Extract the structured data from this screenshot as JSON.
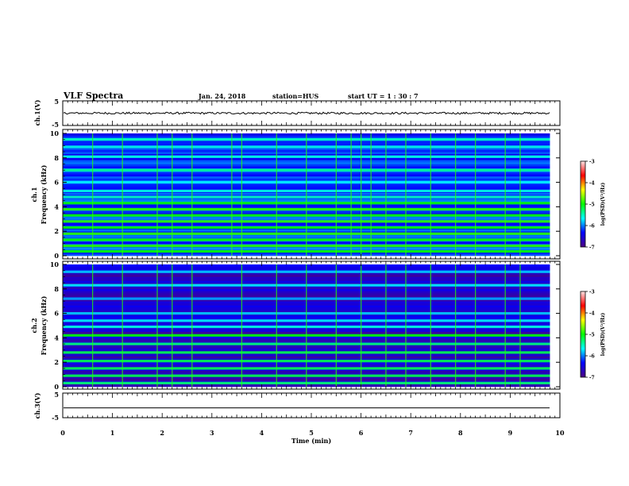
{
  "header": {
    "title": "VLF Spectra",
    "date": "Jan. 24, 2018",
    "station": "station=HUS",
    "start": "start  UT =   1 : 30 : 7"
  },
  "colors": {
    "background": "#ffffff",
    "axis": "#000000",
    "spectrogram_floor": "#00005a",
    "colormap": [
      "#4d0080",
      "#0000ff",
      "#00ffff",
      "#00ff00",
      "#ffff00",
      "#ff0000",
      "#ffe6e6"
    ]
  },
  "chart_data": [
    {
      "type": "line",
      "name": "ch1-waveform",
      "ylabel": "ch.1(V)",
      "ylim": [
        -5,
        5
      ],
      "ytick_labels": [
        "5",
        "-5"
      ],
      "xlim": [
        0,
        10
      ],
      "approx_level": 0,
      "noise_amplitude": 0.4,
      "end_time": 9.8
    },
    {
      "type": "heatmap",
      "name": "ch1-spectrogram",
      "ylabel": "ch.1\nFrequency (kHz)",
      "ylim": [
        0,
        10
      ],
      "ytick_labels": [
        "0",
        "2",
        "4",
        "6",
        "8",
        "10"
      ],
      "xlim": [
        0,
        10
      ],
      "end_time": 9.8,
      "colorbar": {
        "label": "log(PSD)(V²/Hz)",
        "range": [
          -7,
          -3
        ],
        "tick_labels": [
          "-3",
          "-4",
          "-5",
          "-6",
          "-7"
        ]
      },
      "bands_khz": [
        0.35,
        0.8,
        1.3,
        1.8,
        2.3,
        2.8,
        3.3,
        3.8,
        4.3,
        4.8,
        5.3,
        6.0,
        7.0,
        8.1,
        8.9,
        9.5
      ],
      "band_log_psd": [
        -5.0,
        -4.9,
        -5.0,
        -4.9,
        -5.0,
        -4.9,
        -5.0,
        -4.9,
        -5.0,
        -5.5,
        -5.6,
        -5.7,
        -5.4,
        -5.6,
        -5.6,
        -5.5
      ],
      "background_log_psd": -6.2,
      "impulse_times_min": [
        0.6,
        1.2,
        1.9,
        2.2,
        2.6,
        3.4,
        3.6,
        4.3,
        4.9,
        5.5,
        5.8,
        6.0,
        6.2,
        6.5,
        6.9,
        7.4,
        7.9,
        8.3,
        8.9,
        9.2
      ]
    },
    {
      "type": "heatmap",
      "name": "ch2-spectrogram",
      "ylabel": "ch.2\nFrequency (kHz)",
      "ylim": [
        0,
        10
      ],
      "ytick_labels": [
        "0",
        "2",
        "4",
        "6",
        "8",
        "10"
      ],
      "xlim": [
        0,
        10
      ],
      "end_time": 9.8,
      "colorbar": {
        "label": "log(PSD)(V²/Hz)",
        "range": [
          -7,
          -3
        ],
        "tick_labels": [
          "-3",
          "-4",
          "-5",
          "-6",
          "-7"
        ]
      },
      "bands_khz": [
        0.3,
        0.9,
        1.5,
        2.1,
        2.8,
        3.5,
        4.2,
        4.9,
        5.4,
        6.0,
        7.2,
        8.3,
        9.4
      ],
      "band_log_psd": [
        -5.3,
        -5.2,
        -5.2,
        -5.2,
        -5.2,
        -5.3,
        -5.0,
        -5.6,
        -5.7,
        -5.8,
        -5.9,
        -5.7,
        -5.8
      ],
      "background_log_psd": -6.6,
      "impulse_times_min": [
        0.6,
        1.2,
        1.9,
        2.2,
        2.6,
        3.6,
        4.3,
        4.9,
        5.5,
        6.0,
        6.5,
        6.9,
        7.4,
        7.9,
        8.3,
        8.9,
        9.2
      ]
    },
    {
      "type": "line",
      "name": "ch3-waveform",
      "ylabel": "ch.3(V)",
      "ylim": [
        -5,
        5
      ],
      "ytick_labels": [
        "5",
        "-5"
      ],
      "xlim": [
        0,
        10
      ],
      "approx_level": -1,
      "noise_amplitude": 0.0,
      "end_time": 9.8
    }
  ],
  "xaxis": {
    "label": "Time (min)",
    "tick_labels": [
      "0",
      "1",
      "2",
      "3",
      "4",
      "5",
      "6",
      "7",
      "8",
      "9",
      "10"
    ]
  }
}
